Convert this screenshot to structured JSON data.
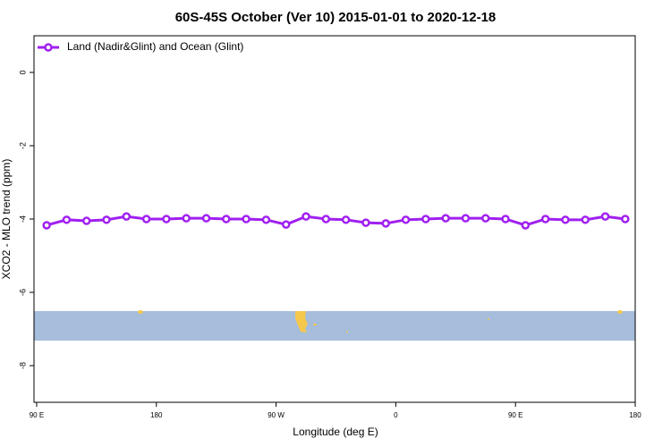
{
  "chart_data": {
    "type": "line",
    "title": "60S-45S October (Ver 10)   2015-01-01 to 2020-12-18",
    "x_label": "Longitude (deg E)",
    "y_label": "XCO2 - MLO trend (ppm)",
    "x": [
      97.5,
      112.5,
      127.5,
      142.5,
      157.5,
      172.5,
      187.5,
      202.5,
      217.5,
      232.5,
      247.5,
      262.5,
      277.5,
      292.5,
      307.5,
      322.5,
      337.5,
      352.5,
      367.5,
      382.5,
      397.5,
      412.5,
      427.5,
      442.5,
      457.5,
      472.5,
      487.5,
      502.5,
      517.5,
      532.5
    ],
    "series": [
      {
        "name": "Land (Nadir&Glint) and Ocean (Glint)",
        "color": "#a020f0",
        "values": [
          -4.17,
          -4.02,
          -4.05,
          -4.02,
          -3.93,
          -4.0,
          -4.0,
          -3.98,
          -3.98,
          -4.0,
          -4.0,
          -4.02,
          -4.15,
          -3.93,
          -4.0,
          -4.02,
          -4.1,
          -4.12,
          -4.02,
          -4.0,
          -3.98,
          -3.98,
          -3.98,
          -4.0,
          -4.17,
          -4.0,
          -4.02,
          -4.02,
          -3.93,
          -4.0
        ]
      }
    ],
    "xlim": [
      88,
      540
    ],
    "ylim": [
      -9,
      1
    ],
    "xticks": [
      {
        "value": 90,
        "label": "90 E"
      },
      180,
      {
        "value": 270,
        "label": "90 W"
      },
      {
        "value": 360,
        "label": "0"
      },
      {
        "value": 450,
        "label": "90 E"
      },
      {
        "value": 540,
        "label": "180"
      }
    ],
    "yticks": [
      0,
      -2,
      -4,
      -6,
      -8
    ],
    "legend": "topleft"
  }
}
